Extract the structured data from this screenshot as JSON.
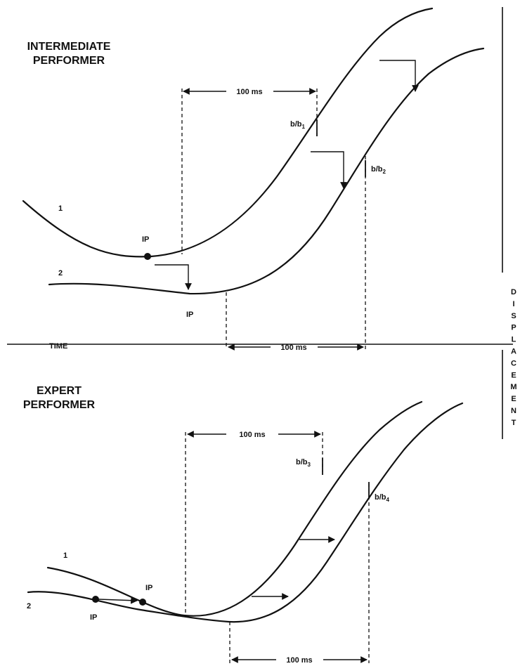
{
  "panels": {
    "intermediate": {
      "title_line1": "INTERMEDIATE",
      "title_line2": "PERFORMER",
      "curve1_label": "1",
      "curve2_label": "2",
      "ip_label_1": "IP",
      "ip_label_2": "IP",
      "interval_top": "100 ms",
      "interval_bottom": "100 ms",
      "marker_a": "b/b",
      "marker_a_sub": "1",
      "marker_b": "b/b",
      "marker_b_sub": "2",
      "time_label": "TIME"
    },
    "expert": {
      "title_line1": "EXPERT",
      "title_line2": "PERFORMER",
      "curve1_label": "1",
      "curve2_label": "2",
      "ip_label_1": "IP",
      "ip_label_2": "IP",
      "interval_top": "100 ms",
      "interval_bottom": "100 ms",
      "marker_a": "b/b",
      "marker_a_sub": "3",
      "marker_b": "b/b",
      "marker_b_sub": "4"
    }
  },
  "axis": {
    "letters": [
      "D",
      "I",
      "S",
      "P",
      "L",
      "A",
      "C",
      "E",
      "M",
      "E",
      "N",
      "T"
    ]
  },
  "colors": {
    "ink": "#111111",
    "background": "#ffffff"
  }
}
